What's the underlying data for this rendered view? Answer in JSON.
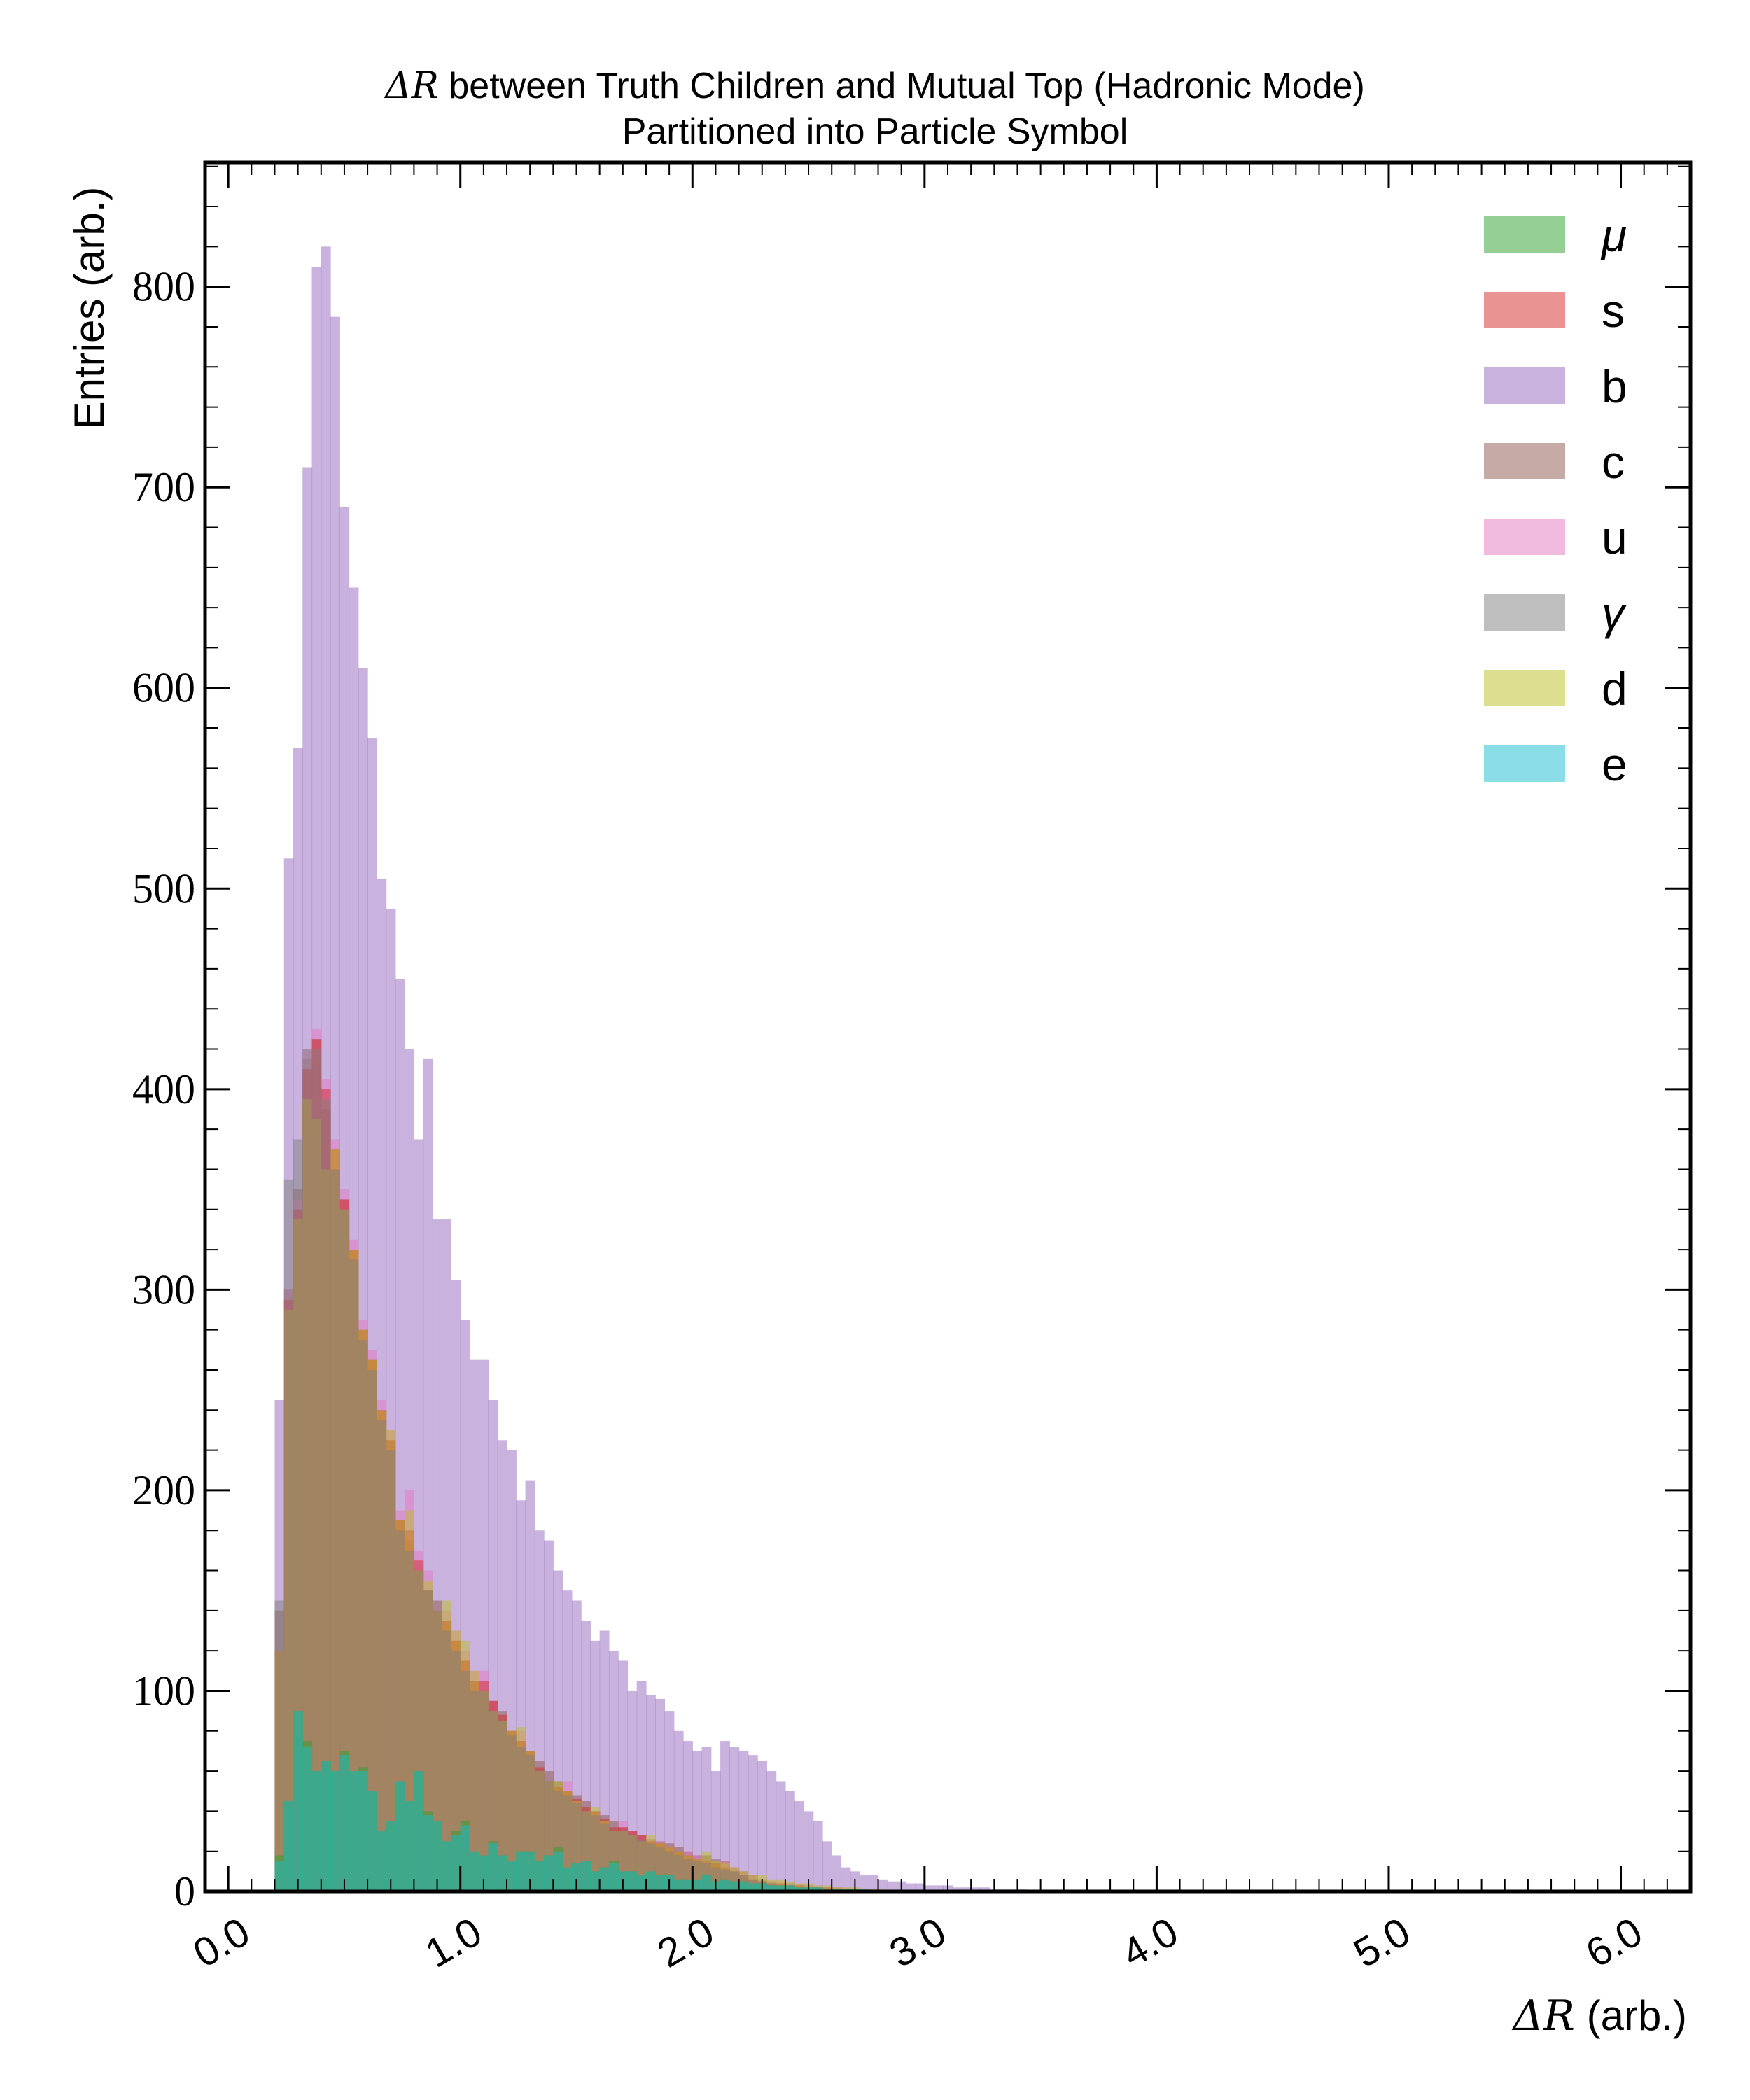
{
  "chart_data": {
    "type": "histogram",
    "title_lines": [
      {
        "math": "ΔR",
        "text": " between Truth Children and Mutual Top (Hadronic Mode)"
      },
      {
        "math": "",
        "text": "Partitioned into Particle Symbol"
      }
    ],
    "ylabel": "Entries (arb.)",
    "xlabel_math": "ΔR",
    "xlabel_text": " (arb.)",
    "xlim": [
      -0.1,
      6.3
    ],
    "ylim": [
      0,
      862
    ],
    "x_ticks": [
      "0.0",
      "1.0",
      "2.0",
      "3.0",
      "4.0",
      "5.0",
      "6.0"
    ],
    "x_tick_values": [
      0,
      1,
      2,
      3,
      4,
      5,
      6
    ],
    "y_ticks": [
      "0",
      "100",
      "200",
      "300",
      "400",
      "500",
      "600",
      "700",
      "800"
    ],
    "y_tick_values": [
      0,
      100,
      200,
      300,
      400,
      500,
      600,
      700,
      800
    ],
    "legend_position": "top-right",
    "bin_start": 0.2,
    "bin_width": 0.04,
    "series": [
      {
        "name": "b",
        "label_kind": "text",
        "color": "#9467bd",
        "values": [
          245,
          515,
          570,
          710,
          810,
          820,
          785,
          690,
          650,
          610,
          575,
          505,
          490,
          455,
          420,
          375,
          415,
          335,
          335,
          305,
          285,
          265,
          265,
          245,
          225,
          220,
          195,
          205,
          180,
          175,
          160,
          150,
          145,
          135,
          125,
          130,
          120,
          115,
          100,
          105,
          98,
          96,
          90,
          80,
          75,
          70,
          72,
          60,
          75,
          72,
          70,
          68,
          65,
          60,
          55,
          50,
          45,
          40,
          35,
          25,
          18,
          12,
          10,
          8,
          8,
          6,
          5,
          5,
          4,
          4,
          3,
          3,
          3,
          2,
          2,
          2,
          2,
          1,
          1,
          1,
          1,
          0,
          0,
          0,
          0,
          0,
          0,
          0,
          0,
          0,
          0,
          0,
          0,
          0,
          0,
          0,
          0,
          0,
          0,
          0
        ]
      },
      {
        "name": "c",
        "label_kind": "text",
        "color": "#8c564b",
        "values": [
          140,
          300,
          350,
          415,
          425,
          390,
          360,
          345,
          320,
          280,
          265,
          240,
          225,
          185,
          175,
          160,
          150,
          145,
          135,
          125,
          115,
          105,
          100,
          95,
          90,
          80,
          75,
          70,
          65,
          60,
          55,
          50,
          48,
          45,
          40,
          38,
          35,
          32,
          30,
          28,
          26,
          25,
          24,
          22,
          20,
          18,
          18,
          16,
          15,
          12,
          10,
          8,
          6,
          5,
          4,
          4,
          3,
          3,
          2,
          2,
          2,
          1,
          1,
          1,
          1,
          0,
          0,
          0,
          0,
          0,
          0,
          0,
          0,
          0,
          0,
          0,
          0,
          0,
          0,
          0,
          0,
          0,
          0,
          0,
          0,
          0,
          0,
          0,
          0,
          0,
          0,
          0,
          0,
          0,
          0,
          0,
          0,
          0,
          0,
          0
        ]
      },
      {
        "name": "u",
        "label_kind": "text",
        "color": "#e377c2",
        "values": [
          120,
          300,
          345,
          420,
          430,
          405,
          375,
          350,
          325,
          285,
          270,
          245,
          230,
          190,
          200,
          170,
          160,
          140,
          140,
          130,
          120,
          110,
          110,
          95,
          85,
          80,
          80,
          70,
          60,
          50,
          50,
          55,
          45,
          40,
          40,
          35,
          30,
          35,
          30,
          28,
          26,
          25,
          22,
          18,
          20,
          18,
          15,
          12,
          15,
          12,
          10,
          8,
          6,
          5,
          5,
          4,
          4,
          3,
          3,
          2,
          2,
          2,
          1,
          1,
          1,
          0,
          0,
          0,
          0,
          0,
          0,
          0,
          0,
          0,
          0,
          0,
          0,
          0,
          0,
          0,
          0,
          0,
          0,
          0,
          0,
          0,
          0,
          0,
          0,
          0,
          0,
          0,
          0,
          0,
          0,
          0,
          0,
          0,
          0,
          0
        ]
      },
      {
        "name": "s",
        "label_kind": "text",
        "color": "#d62728",
        "values": [
          120,
          295,
          340,
          410,
          425,
          400,
          370,
          345,
          320,
          280,
          265,
          240,
          225,
          185,
          180,
          165,
          150,
          140,
          135,
          125,
          115,
          105,
          105,
          95,
          88,
          80,
          75,
          70,
          62,
          55,
          52,
          50,
          46,
          42,
          40,
          36,
          32,
          32,
          30,
          28,
          25,
          24,
          22,
          20,
          18,
          16,
          15,
          14,
          12,
          10,
          8,
          6,
          5,
          4,
          4,
          3,
          3,
          2,
          2,
          2,
          1,
          1,
          1,
          0,
          0,
          0,
          0,
          0,
          0,
          0,
          0,
          0,
          0,
          0,
          0,
          0,
          0,
          0,
          0,
          0,
          0,
          0,
          0,
          0,
          0,
          0,
          0,
          0,
          0,
          0,
          0,
          0,
          0,
          0,
          0,
          0,
          0,
          0,
          0,
          0
        ]
      },
      {
        "name": "d",
        "label_kind": "text",
        "color": "#bcbd22",
        "values": [
          120,
          290,
          335,
          395,
          385,
          360,
          370,
          340,
          320,
          280,
          265,
          240,
          230,
          185,
          190,
          160,
          155,
          140,
          145,
          130,
          125,
          110,
          100,
          90,
          85,
          80,
          82,
          70,
          60,
          55,
          55,
          50,
          45,
          40,
          42,
          35,
          30,
          30,
          28,
          25,
          28,
          24,
          22,
          20,
          18,
          16,
          20,
          15,
          14,
          12,
          10,
          8,
          8,
          6,
          6,
          5,
          4,
          4,
          3,
          3,
          2,
          2,
          2,
          1,
          1,
          1,
          0,
          0,
          0,
          0,
          0,
          0,
          0,
          0,
          0,
          0,
          0,
          0,
          0,
          0,
          0,
          0,
          0,
          0,
          0,
          0,
          0,
          0,
          0,
          0,
          0,
          0,
          0,
          0,
          0,
          0,
          0,
          0,
          0,
          0
        ]
      },
      {
        "name": "γ",
        "label_kind": "math",
        "color": "#7f7f7f",
        "values": [
          145,
          355,
          375,
          420,
          420,
          395,
          360,
          340,
          315,
          275,
          260,
          235,
          220,
          180,
          170,
          160,
          150,
          140,
          130,
          120,
          110,
          100,
          100,
          90,
          85,
          78,
          72,
          68,
          60,
          55,
          50,
          48,
          44,
          40,
          38,
          34,
          30,
          30,
          28,
          26,
          24,
          22,
          20,
          18,
          16,
          15,
          14,
          12,
          11,
          10,
          8,
          6,
          5,
          4,
          3,
          3,
          2,
          2,
          2,
          1,
          1,
          1,
          0,
          0,
          0,
          0,
          0,
          0,
          0,
          0,
          0,
          0,
          0,
          0,
          0,
          0,
          0,
          0,
          0,
          0,
          0,
          0,
          0,
          0,
          0,
          0,
          0,
          0,
          0,
          0,
          0,
          0,
          0,
          0,
          0,
          0,
          0,
          0,
          0,
          0
        ]
      },
      {
        "name": "μ",
        "label_kind": "math",
        "color": "#2ca02c",
        "values": [
          18,
          45,
          90,
          75,
          60,
          65,
          60,
          70,
          60,
          62,
          50,
          30,
          35,
          55,
          45,
          60,
          40,
          35,
          25,
          30,
          35,
          20,
          18,
          25,
          18,
          15,
          20,
          20,
          15,
          18,
          22,
          12,
          14,
          15,
          10,
          12,
          15,
          10,
          10,
          8,
          10,
          8,
          8,
          6,
          6,
          6,
          8,
          5,
          6,
          5,
          5,
          4,
          4,
          3,
          3,
          3,
          2,
          2,
          2,
          1,
          1,
          1,
          1,
          1,
          0,
          0,
          0,
          0,
          0,
          0,
          0,
          0,
          0,
          0,
          0,
          0,
          0,
          0,
          0,
          0,
          0,
          0,
          0,
          0,
          0,
          0,
          0,
          0,
          0,
          0,
          0,
          0,
          0,
          0,
          0,
          0,
          0,
          0,
          0,
          0
        ]
      },
      {
        "name": "e",
        "label_kind": "text",
        "color": "#17becf",
        "values": [
          15,
          45,
          90,
          72,
          60,
          65,
          60,
          68,
          60,
          60,
          50,
          30,
          35,
          55,
          45,
          60,
          38,
          35,
          25,
          28,
          33,
          20,
          18,
          24,
          18,
          15,
          20,
          20,
          15,
          18,
          20,
          12,
          14,
          15,
          10,
          12,
          14,
          10,
          10,
          8,
          10,
          8,
          8,
          6,
          6,
          6,
          8,
          5,
          6,
          5,
          5,
          4,
          4,
          3,
          3,
          3,
          2,
          2,
          2,
          1,
          1,
          1,
          1,
          1,
          0,
          0,
          0,
          0,
          0,
          0,
          0,
          0,
          0,
          0,
          0,
          0,
          0,
          0,
          0,
          0,
          0,
          0,
          0,
          0,
          0,
          0,
          0,
          0,
          0,
          0,
          0,
          0,
          0,
          0,
          0,
          0,
          0,
          0,
          0,
          0
        ]
      }
    ],
    "legend_order": [
      "μ",
      "s",
      "b",
      "c",
      "u",
      "γ",
      "d",
      "e"
    ]
  }
}
